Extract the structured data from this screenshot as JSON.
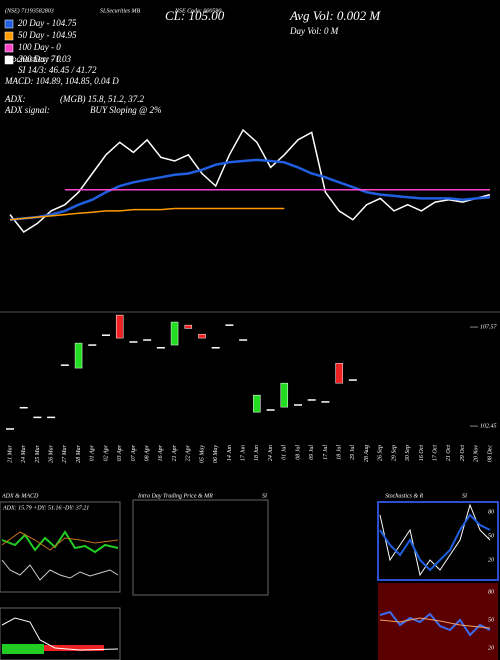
{
  "header": {
    "exchange": "(NSE) 71193582803",
    "security": "SLSecurities MB",
    "code": "NSE Code: 000590",
    "close": "CL: 105.00",
    "avg_vol": "Avg Vol: 0.002  M",
    "day_vol": "Day Vol: 0  M",
    "stochastics": "Stochastics: 71.03",
    "si": "SI 14/3: 46.45 / 41.72",
    "macd": "MACD: 104.89, 104.85, 0.04  D",
    "adx": "ADX:",
    "mgb": "(MGB) 15.8, 51.2, 37.2",
    "adx_signal": "ADX  signal:",
    "signal": "BUY Sloping @ 2%"
  },
  "chart_data": [
    {
      "type": "line",
      "close": [
        103.8,
        102.87,
        103.33,
        104,
        104.33,
        105,
        106,
        107,
        107.67,
        107.13,
        107.8,
        106.87,
        106.67,
        107,
        106,
        105.33,
        107,
        108.33,
        107.67,
        106.33,
        107,
        107.8,
        108.2,
        105,
        104,
        103.53,
        104.33,
        104.67,
        104,
        104.33,
        104,
        104.47,
        104.6,
        104.47,
        104.67,
        104.87
      ],
      "series": [
        {
          "name": "20 Day - 104.75",
          "color": "#1f5fe0",
          "values": [
            103.53,
            103.6,
            103.67,
            103.8,
            104,
            104.33,
            104.6,
            105,
            105.33,
            105.53,
            105.67,
            105.8,
            105.93,
            106,
            106.2,
            106.47,
            106.6,
            106.67,
            106.73,
            106.67,
            106.6,
            106.33,
            106,
            105.8,
            105.53,
            105.27,
            105,
            104.87,
            104.8,
            104.73,
            104.67,
            104.67,
            104.67,
            104.6,
            104.67,
            104.73
          ]
        },
        {
          "name": "50 Day - 104.95",
          "color": "#ff9900",
          "values": [
            103.53,
            103.6,
            103.67,
            103.73,
            103.8,
            103.87,
            103.93,
            104,
            104,
            104.07,
            104.07,
            104.07,
            104.13,
            104.13,
            104.13,
            104.13,
            104.13,
            104.13,
            104.13,
            104.13,
            104.13,
            null,
            null,
            null,
            null,
            null,
            null,
            null,
            null,
            null,
            null,
            null,
            null,
            null,
            null,
            null
          ]
        },
        {
          "name": "100 Day - 0",
          "color": "#ff44cc",
          "values": [
            null,
            null,
            null,
            null,
            105.13,
            105.13,
            105.13,
            105.13,
            105.13,
            105.13,
            105.13,
            105.13,
            105.13,
            105.13,
            105.13,
            105.13,
            105.13,
            105.13,
            105.13,
            105.13,
            105.13,
            105.13,
            105.13,
            105.13,
            105.13,
            105.13,
            105.13,
            105.13,
            105.13,
            105.13,
            105.13,
            105.13,
            105.13,
            105.13,
            105.13,
            105.13
          ]
        },
        {
          "name": "200 Day - 0",
          "color": "#ffffff",
          "values": [
            null,
            null,
            null,
            null,
            null,
            null,
            null,
            null,
            null,
            null,
            null,
            null,
            null,
            null,
            null,
            null,
            null,
            null,
            null,
            null,
            null,
            null,
            null,
            null,
            null,
            null,
            null,
            null,
            null,
            null,
            null,
            null,
            null,
            null,
            null,
            null
          ]
        }
      ]
    },
    {
      "type": "candlestick",
      "categories": [
        "21 Mar",
        "24 Mar",
        "25 Mar",
        "26 Mar",
        "27 Mar",
        "28 Mar",
        "01 Apr",
        "02 Apr",
        "03 Apr",
        "07 Apr",
        "08 Apr",
        "16 Apr",
        "21 Apr",
        "22 Apr",
        "05 May",
        "06 May",
        "14 Jun",
        "17 Jun",
        "18 Jun",
        "24 Jun",
        "01 Jul",
        "08 Jul",
        "09 Jul",
        "17 Jul",
        "18 Jul",
        "29 Jul",
        "28 Aug",
        "26 Sep",
        "29 Sep",
        "30 Sep",
        "16 Oct",
        "17 Oct",
        "21 Oct",
        "29 Oct",
        "20 Nov",
        "08 Dec"
      ],
      "open": [
        102.3,
        103.4,
        102.9,
        102.9,
        105.6,
        105.45,
        106.64,
        107.15,
        108.19,
        106.8,
        106.9,
        106.5,
        106.64,
        107.67,
        107.2,
        106.5,
        107.67,
        106.9,
        103.17,
        103.28,
        103.43,
        103.54,
        103.8,
        103.7,
        105.7,
        104.83,
        null,
        null,
        null,
        null,
        null,
        null,
        null,
        null,
        null,
        null
      ],
      "close": [
        102.3,
        103.4,
        102.9,
        102.9,
        105.6,
        106.74,
        106.64,
        107.15,
        107.0,
        106.8,
        106.9,
        106.5,
        107.83,
        107.5,
        107.0,
        106.5,
        107.67,
        106.9,
        104.05,
        103.28,
        104.67,
        103.54,
        103.8,
        103.7,
        104.67,
        104.83,
        null,
        null,
        null,
        null,
        null,
        null,
        null,
        null,
        null,
        null
      ],
      "ylim": [
        101.73,
        108.35
      ],
      "yticks": [
        102.45,
        107.57
      ]
    }
  ],
  "panels": {
    "adx_title": "ADX  & MACD",
    "adx_box": "ADX: 15.79  +DY: 51.16  -DY: 37.21",
    "intra_title": "Intra Day Trading Price  & MR",
    "intra_si": "SI",
    "stoch_title": "Stochastics & R",
    "stoch_si": "SI",
    "stoch_ticks": [
      "80",
      "50",
      "20"
    ],
    "si_ticks": [
      "80",
      "50",
      "20"
    ]
  }
}
